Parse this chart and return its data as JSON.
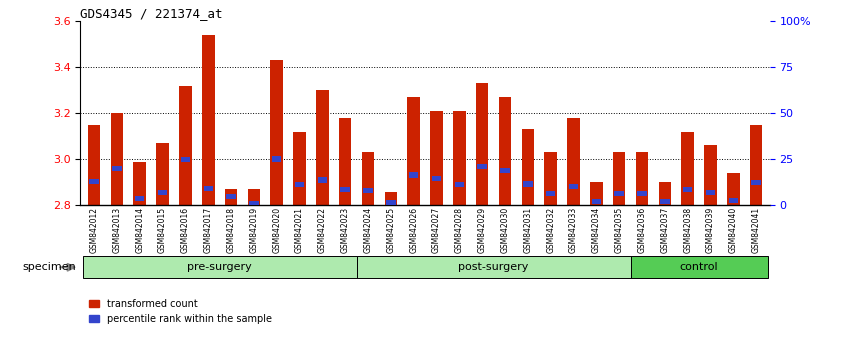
{
  "title": "GDS4345 / 221374_at",
  "samples": [
    "GSM842012",
    "GSM842013",
    "GSM842014",
    "GSM842015",
    "GSM842016",
    "GSM842017",
    "GSM842018",
    "GSM842019",
    "GSM842020",
    "GSM842021",
    "GSM842022",
    "GSM842023",
    "GSM842024",
    "GSM842025",
    "GSM842026",
    "GSM842027",
    "GSM842028",
    "GSM842029",
    "GSM842030",
    "GSM842031",
    "GSM842032",
    "GSM842033",
    "GSM842034",
    "GSM842035",
    "GSM842036",
    "GSM842037",
    "GSM842038",
    "GSM842039",
    "GSM842040",
    "GSM842041"
  ],
  "red_values": [
    3.15,
    3.2,
    2.99,
    3.07,
    3.32,
    3.54,
    2.87,
    2.87,
    3.43,
    3.12,
    3.3,
    3.18,
    3.03,
    2.86,
    3.27,
    3.21,
    3.21,
    3.33,
    3.27,
    3.13,
    3.03,
    3.18,
    2.9,
    3.03,
    3.03,
    2.9,
    3.12,
    3.06,
    2.94,
    3.15
  ],
  "blue_fractions": [
    0.3,
    0.4,
    0.15,
    0.2,
    0.38,
    0.1,
    0.55,
    0.1,
    0.32,
    0.28,
    0.22,
    0.18,
    0.28,
    0.22,
    0.28,
    0.28,
    0.22,
    0.32,
    0.32,
    0.28,
    0.22,
    0.22,
    0.15,
    0.22,
    0.22,
    0.15,
    0.22,
    0.22,
    0.15,
    0.28
  ],
  "group_spans": [
    [
      0,
      12,
      "pre-surgery",
      "#AEEAAE"
    ],
    [
      12,
      24,
      "post-surgery",
      "#AEEAAE"
    ],
    [
      24,
      30,
      "control",
      "#55CC55"
    ]
  ],
  "y_min": 2.8,
  "y_max": 3.6,
  "y_ticks": [
    2.8,
    3.0,
    3.2,
    3.4,
    3.6
  ],
  "right_y_ticks": [
    0,
    25,
    50,
    75,
    100
  ],
  "right_y_labels": [
    "0",
    "25",
    "50",
    "75",
    "100%"
  ],
  "bar_color_red": "#CC2200",
  "bar_color_blue": "#3344CC",
  "specimen_label": "specimen"
}
